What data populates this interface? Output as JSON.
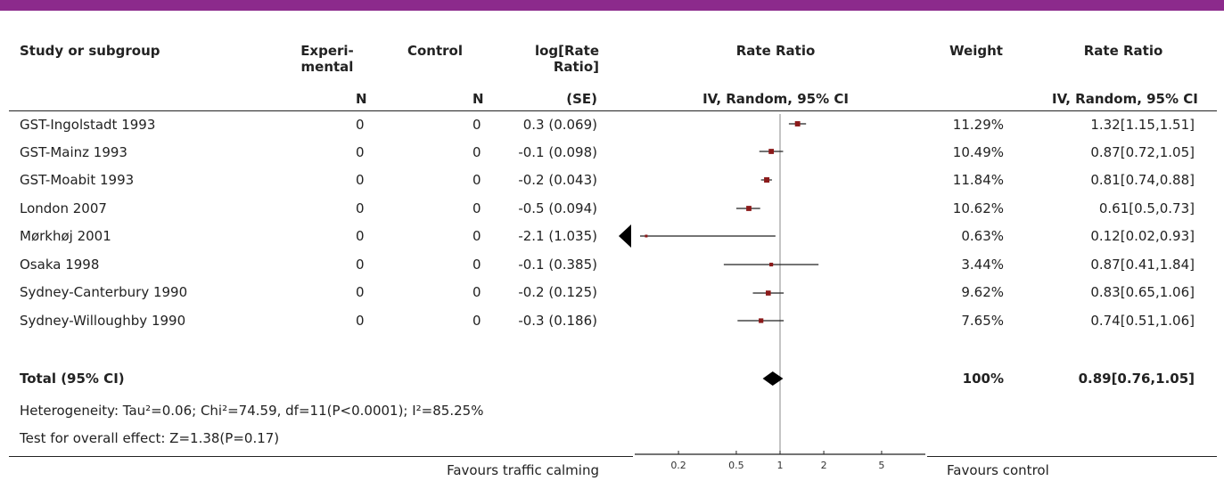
{
  "colors": {
    "top_bar": "#8c2a8c",
    "study_marker": "#8b1a1a",
    "total_diamond": "#000000",
    "line": "#222222"
  },
  "headers": {
    "study": "Study or subgroup",
    "experimental": "Experi-\nmental",
    "control": "Control",
    "lograte": "log[Rate\nRatio]",
    "rate_ratio_plot": "Rate Ratio",
    "weight": "Weight",
    "rate_ratio_text": "Rate Ratio",
    "exp_sub": "N",
    "ctl_sub": "N",
    "lograte_sub": "(SE)",
    "plot_sub": "IV, Random, 95% CI",
    "rr_sub": "IV, Random, 95% CI"
  },
  "rows": [
    {
      "study": "GST-Ingolstadt 1993",
      "exp_n": "0",
      "ctl_n": "0",
      "lograte": "0.3 (0.069)",
      "weight": "11.29%",
      "ci_text": "1.32[1.15,1.51]"
    },
    {
      "study": "GST-Mainz 1993",
      "exp_n": "0",
      "ctl_n": "0",
      "lograte": "-0.1 (0.098)",
      "weight": "10.49%",
      "ci_text": "0.87[0.72,1.05]"
    },
    {
      "study": "GST-Moabit 1993",
      "exp_n": "0",
      "ctl_n": "0",
      "lograte": "-0.2 (0.043)",
      "weight": "11.84%",
      "ci_text": "0.81[0.74,0.88]"
    },
    {
      "study": "London 2007",
      "exp_n": "0",
      "ctl_n": "0",
      "lograte": "-0.5 (0.094)",
      "weight": "10.62%",
      "ci_text": "0.61[0.5,0.73]"
    },
    {
      "study": "Mørkhøj 2001",
      "exp_n": "0",
      "ctl_n": "0",
      "lograte": "-2.1 (1.035)",
      "weight": "0.63%",
      "ci_text": "0.12[0.02,0.93]"
    },
    {
      "study": "Osaka 1998",
      "exp_n": "0",
      "ctl_n": "0",
      "lograte": "-0.1 (0.385)",
      "weight": "3.44%",
      "ci_text": "0.87[0.41,1.84]"
    },
    {
      "study": "Sydney-Canterbury 1990",
      "exp_n": "0",
      "ctl_n": "0",
      "lograte": "-0.2 (0.125)",
      "weight": "9.62%",
      "ci_text": "0.83[0.65,1.06]"
    },
    {
      "study": "Sydney-Willoughby 1990",
      "exp_n": "0",
      "ctl_n": "0",
      "lograte": "-0.3 (0.186)",
      "weight": "7.65%",
      "ci_text": "0.74[0.51,1.06]"
    }
  ],
  "total": {
    "label": "Total (95% CI)",
    "weight": "100%",
    "ci_text": "0.89[0.76,1.05]"
  },
  "heterogeneity": "Heterogeneity: Tau²=0.06; Chi²=74.59, df=11(P<0.0001); I²=85.25%",
  "overall_effect": "Test for overall effect: Z=1.38(P=0.17)",
  "favours_left": "Favours traffic calming",
  "favours_right": "Favours control",
  "chart_data": {
    "type": "forest",
    "scale": "log",
    "xlim": [
      0.1,
      10
    ],
    "ticks": [
      0.2,
      0.5,
      1,
      2,
      5
    ],
    "tick_labels": [
      "0.2",
      "0.5",
      "1",
      "2",
      "5"
    ],
    "reference_line": 1,
    "studies": [
      {
        "name": "GST-Ingolstadt 1993",
        "estimate": 1.32,
        "lower": 1.15,
        "upper": 1.51,
        "weight": 11.29
      },
      {
        "name": "GST-Mainz 1993",
        "estimate": 0.87,
        "lower": 0.72,
        "upper": 1.05,
        "weight": 10.49
      },
      {
        "name": "GST-Moabit 1993",
        "estimate": 0.81,
        "lower": 0.74,
        "upper": 0.88,
        "weight": 11.84
      },
      {
        "name": "London 2007",
        "estimate": 0.61,
        "lower": 0.5,
        "upper": 0.73,
        "weight": 10.62
      },
      {
        "name": "Mørkhøj 2001",
        "estimate": 0.12,
        "lower": 0.02,
        "upper": 0.93,
        "weight": 0.63
      },
      {
        "name": "Osaka 1998",
        "estimate": 0.87,
        "lower": 0.41,
        "upper": 1.84,
        "weight": 3.44
      },
      {
        "name": "Sydney-Canterbury 1990",
        "estimate": 0.83,
        "lower": 0.65,
        "upper": 1.06,
        "weight": 9.62
      },
      {
        "name": "Sydney-Willoughby 1990",
        "estimate": 0.74,
        "lower": 0.51,
        "upper": 1.06,
        "weight": 7.65
      }
    ],
    "total": {
      "estimate": 0.89,
      "lower": 0.76,
      "upper": 1.05,
      "weight": 100
    }
  }
}
